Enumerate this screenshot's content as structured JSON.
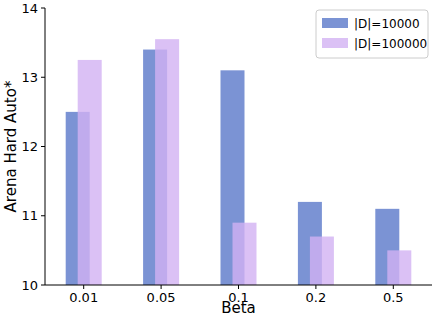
{
  "chart_data": {
    "type": "bar",
    "x_label": "Beta",
    "y_label": "Arena Hard Auto*",
    "categories": [
      "0.01",
      "0.05",
      "0.1",
      "0.2",
      "0.5"
    ],
    "series": [
      {
        "name": "|D|=10000",
        "color": "#7b93d4",
        "values": [
          12.5,
          13.4,
          13.1,
          11.2,
          11.1
        ]
      },
      {
        "name": "|D|=100000",
        "color": "#d2b1f2",
        "values": [
          13.25,
          13.55,
          10.9,
          10.7,
          10.5
        ]
      }
    ],
    "ylim": [
      10,
      14
    ],
    "yticks": [
      10,
      11,
      12,
      13,
      14
    ],
    "grid": false,
    "legend": "upper-right"
  }
}
